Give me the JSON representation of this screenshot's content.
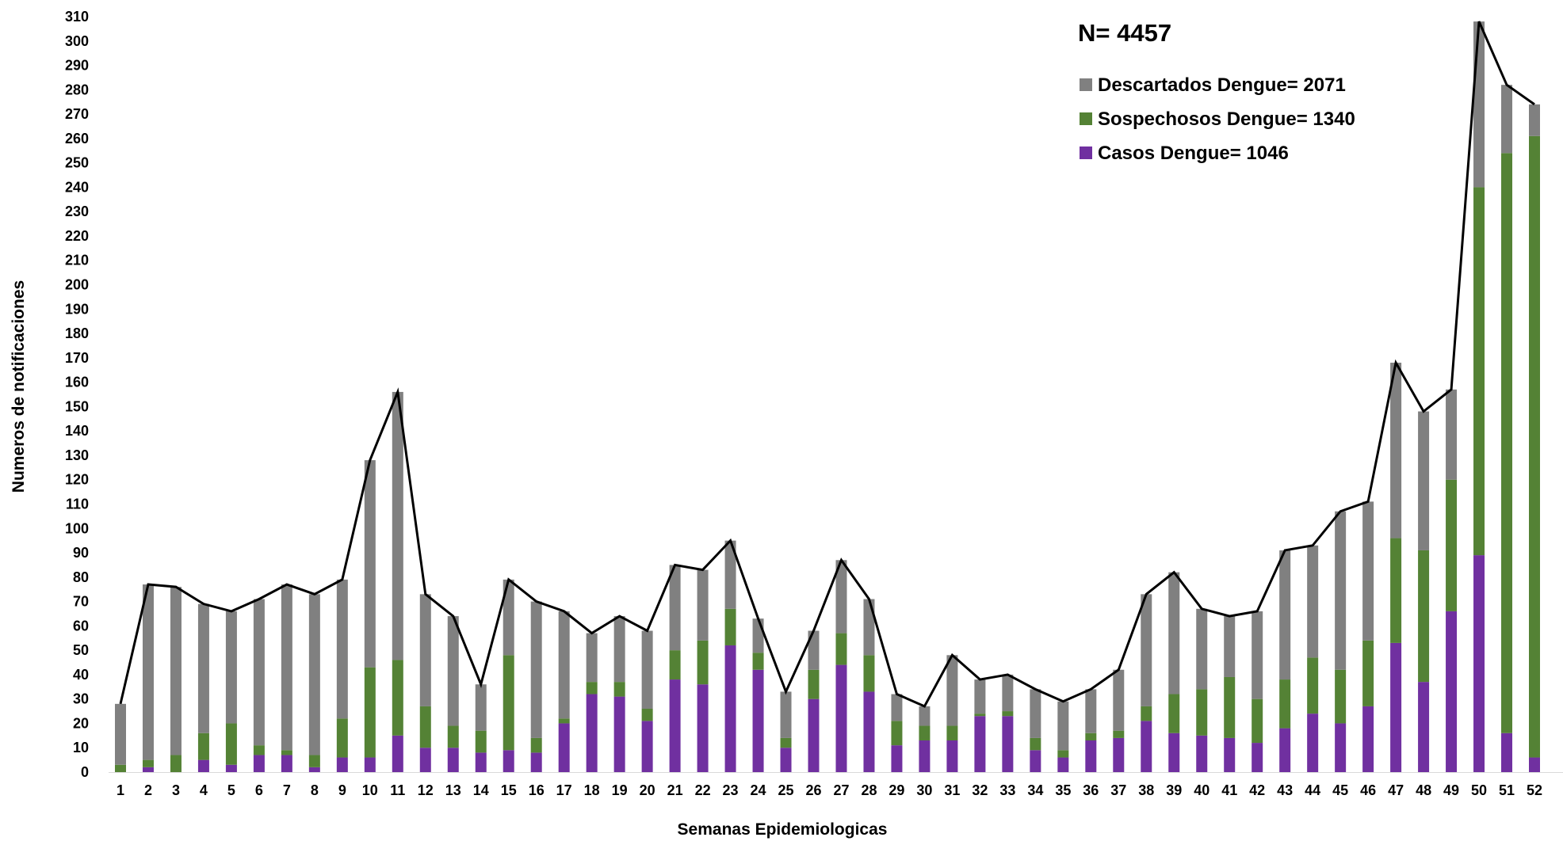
{
  "chart_data": {
    "type": "bar",
    "stacked": true,
    "title": "",
    "xlabel": "Semanas Epidemiologicas",
    "ylabel": "Numeros de notificaciones",
    "annotation": "N= 4457",
    "ylim": [
      0,
      310
    ],
    "ytick_step": 10,
    "grid": false,
    "legend_position": "top-right",
    "categories": [
      "1",
      "2",
      "3",
      "4",
      "5",
      "6",
      "7",
      "8",
      "9",
      "10",
      "11",
      "12",
      "13",
      "14",
      "15",
      "16",
      "17",
      "18",
      "19",
      "20",
      "21",
      "22",
      "23",
      "24",
      "25",
      "26",
      "27",
      "28",
      "29",
      "30",
      "31",
      "32",
      "33",
      "34",
      "35",
      "36",
      "37",
      "38",
      "39",
      "40",
      "41",
      "42",
      "43",
      "44",
      "45",
      "46",
      "47",
      "48",
      "49",
      "50",
      "51",
      "52"
    ],
    "series": [
      {
        "name": "Casos Dengue= 1046",
        "color": "#7030a0",
        "values": [
          0,
          2,
          0,
          5,
          3,
          7,
          7,
          2,
          6,
          6,
          15,
          10,
          10,
          8,
          9,
          8,
          20,
          32,
          31,
          21,
          38,
          36,
          52,
          42,
          10,
          30,
          44,
          33,
          11,
          13,
          13,
          23,
          23,
          9,
          6,
          13,
          14,
          21,
          16,
          15,
          14,
          12,
          18,
          24,
          20,
          27,
          53,
          37,
          66,
          89,
          16,
          6
        ]
      },
      {
        "name": "Sospechosos Dengue= 1340",
        "color": "#548235",
        "values": [
          3,
          3,
          7,
          11,
          17,
          4,
          2,
          5,
          16,
          37,
          31,
          17,
          9,
          9,
          39,
          6,
          2,
          5,
          6,
          5,
          12,
          18,
          15,
          7,
          4,
          12,
          13,
          15,
          10,
          6,
          6,
          1,
          2,
          5,
          3,
          3,
          3,
          6,
          16,
          19,
          25,
          18,
          20,
          23,
          22,
          27,
          43,
          54,
          54,
          151,
          238,
          255
        ]
      },
      {
        "name": "Descartados Dengue= 2071",
        "color": "#808080",
        "values": [
          25,
          72,
          69,
          53,
          46,
          60,
          68,
          66,
          57,
          85,
          110,
          46,
          45,
          19,
          31,
          56,
          44,
          20,
          27,
          32,
          35,
          29,
          28,
          14,
          19,
          16,
          30,
          23,
          11,
          8,
          29,
          14,
          15,
          20,
          20,
          18,
          25,
          46,
          50,
          33,
          25,
          36,
          53,
          46,
          65,
          57,
          72,
          57,
          37,
          68,
          28,
          13
        ]
      }
    ],
    "total_line": {
      "name": "Total",
      "color": "#000000",
      "values": [
        28,
        77,
        76,
        69,
        66,
        71,
        77,
        73,
        79,
        128,
        156,
        73,
        64,
        36,
        79,
        70,
        66,
        57,
        64,
        58,
        85,
        83,
        95,
        63,
        33,
        58,
        87,
        71,
        32,
        27,
        48,
        38,
        40,
        34,
        29,
        34,
        42,
        73,
        82,
        67,
        64,
        66,
        91,
        93,
        107,
        111,
        168,
        148,
        157,
        308,
        282,
        274
      ]
    }
  }
}
